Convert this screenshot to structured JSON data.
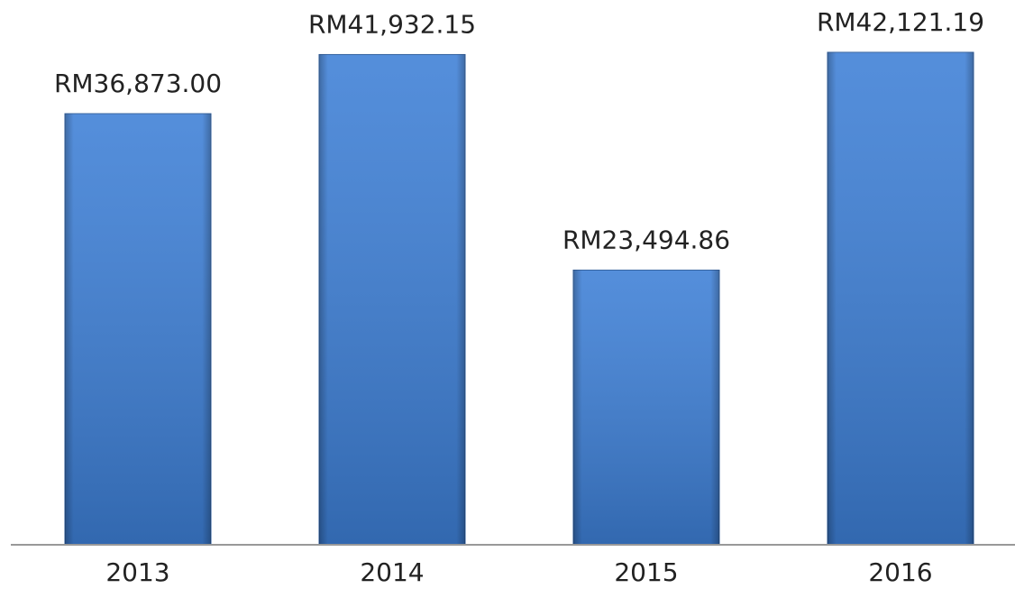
{
  "chart_data": {
    "type": "bar",
    "categories": [
      "2013",
      "2014",
      "2015",
      "2016"
    ],
    "values": [
      36873,
      41932.15,
      23494.86,
      42121.19
    ],
    "value_labels": [
      "RM36,873.00",
      "RM41,932.15",
      "RM23,494.86",
      "RM42,121.19"
    ],
    "color": "#3d7fd6",
    "grid": false
  }
}
